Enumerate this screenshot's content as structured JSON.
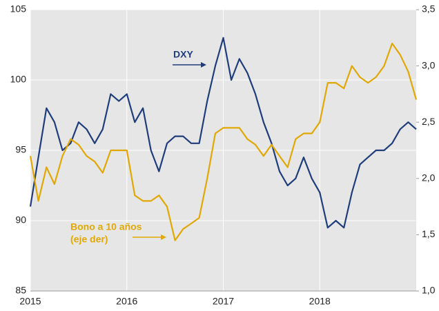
{
  "chart_data": {
    "type": "line",
    "x": [
      2015,
      2015.083,
      2015.167,
      2015.25,
      2015.333,
      2015.417,
      2015.5,
      2015.583,
      2015.667,
      2015.75,
      2015.833,
      2015.917,
      2016,
      2016.083,
      2016.167,
      2016.25,
      2016.333,
      2016.417,
      2016.5,
      2016.583,
      2016.667,
      2016.75,
      2016.833,
      2016.917,
      2017,
      2017.083,
      2017.167,
      2017.25,
      2017.333,
      2017.417,
      2017.5,
      2017.583,
      2017.667,
      2017.75,
      2017.833,
      2017.917,
      2018,
      2018.083,
      2018.167,
      2018.25,
      2018.333,
      2018.417,
      2018.5,
      2018.583,
      2018.667,
      2018.75,
      2018.833,
      2018.917,
      2019
    ],
    "series": [
      {
        "name": "DXY",
        "color": "#1f3d7a",
        "axis": "y",
        "values": [
          91.0,
          94.5,
          98.0,
          97.0,
          95.0,
          95.5,
          97.0,
          96.5,
          95.5,
          96.5,
          99.0,
          98.5,
          99.0,
          97.0,
          98.0,
          95.0,
          93.5,
          95.5,
          96.0,
          96.0,
          95.5,
          95.5,
          98.5,
          101.0,
          103.0,
          100.0,
          101.5,
          100.5,
          99.0,
          97.0,
          95.5,
          93.5,
          92.5,
          93.0,
          94.5,
          93.0,
          92.0,
          89.5,
          90.0,
          89.5,
          92.0,
          94.0,
          94.5,
          95.0,
          95.0,
          95.5,
          96.5,
          97.0,
          96.5
        ]
      },
      {
        "name": "Bono a 10 años (eje der)",
        "color": "#e0a800",
        "axis": "y2",
        "values": [
          2.2,
          1.8,
          2.1,
          1.95,
          2.2,
          2.35,
          2.3,
          2.2,
          2.15,
          2.05,
          2.25,
          2.25,
          2.25,
          1.85,
          1.8,
          1.8,
          1.85,
          1.75,
          1.45,
          1.55,
          1.6,
          1.65,
          2.0,
          2.4,
          2.45,
          2.45,
          2.45,
          2.35,
          2.3,
          2.2,
          2.3,
          2.2,
          2.1,
          2.35,
          2.4,
          2.4,
          2.5,
          2.85,
          2.85,
          2.8,
          3.0,
          2.9,
          2.85,
          2.9,
          3.0,
          3.2,
          3.1,
          2.95,
          2.7
        ]
      }
    ],
    "annotations": [
      "DXY",
      "Bono a 10 años",
      "(eje der)"
    ],
    "xlim": [
      2015,
      2019
    ],
    "xticks": [
      2015,
      2016,
      2017,
      2018
    ],
    "ylim": [
      85,
      105
    ],
    "yticks": [
      85,
      90,
      95,
      100,
      105
    ],
    "y2lim": [
      1.0,
      3.5
    ],
    "y2ticks": [
      {
        "value": 1.0,
        "label": "1,0"
      },
      {
        "value": 1.5,
        "label": "1,5"
      },
      {
        "value": 2.0,
        "label": "2,0"
      },
      {
        "value": 2.5,
        "label": "2,5"
      },
      {
        "value": 3.0,
        "label": "3,0"
      },
      {
        "value": 3.5,
        "label": "3,5"
      }
    ],
    "grid": true
  }
}
